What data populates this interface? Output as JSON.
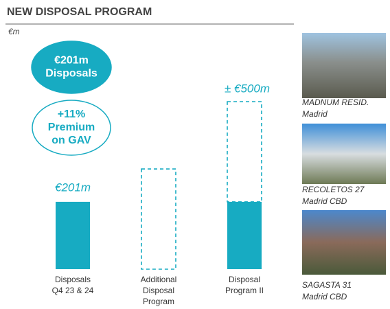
{
  "chart_data": {
    "type": "stacked-bar",
    "title": "NEW DISPOSAL PROGRAM",
    "unit": "€m",
    "categories": [
      [
        "Disposals",
        "Q4 23 & 24"
      ],
      [
        "Additional",
        "Disposal",
        "Program"
      ],
      [
        "Disposal",
        "Program II"
      ]
    ],
    "series": [
      {
        "color": "#17abc2",
        "style": "filled",
        "values": [
          201,
          null,
          201
        ],
        "value_labels": [
          "€201m",
          null,
          null
        ]
      },
      {
        "color": "#17abc2",
        "style": "dashed",
        "values": [
          null,
          299,
          299
        ]
      }
    ],
    "total_label": {
      "value": 500,
      "label": "± €500m",
      "category": 2
    },
    "ylim": [
      0,
      500
    ],
    "callouts": [
      {
        "lines": [
          "€201m",
          "Disposals"
        ],
        "style": "filled"
      },
      {
        "lines": [
          "+11%",
          "Premium",
          "on GAV"
        ],
        "style": "outline"
      }
    ],
    "photos": [
      {
        "caption": [
          "MADNUM RESID.",
          "Madrid"
        ]
      },
      {
        "caption": [
          "RECOLETOS  27",
          "Madrid CBD"
        ]
      },
      {
        "caption": [
          "SAGASTA 31",
          "Madrid CBD"
        ]
      }
    ]
  }
}
